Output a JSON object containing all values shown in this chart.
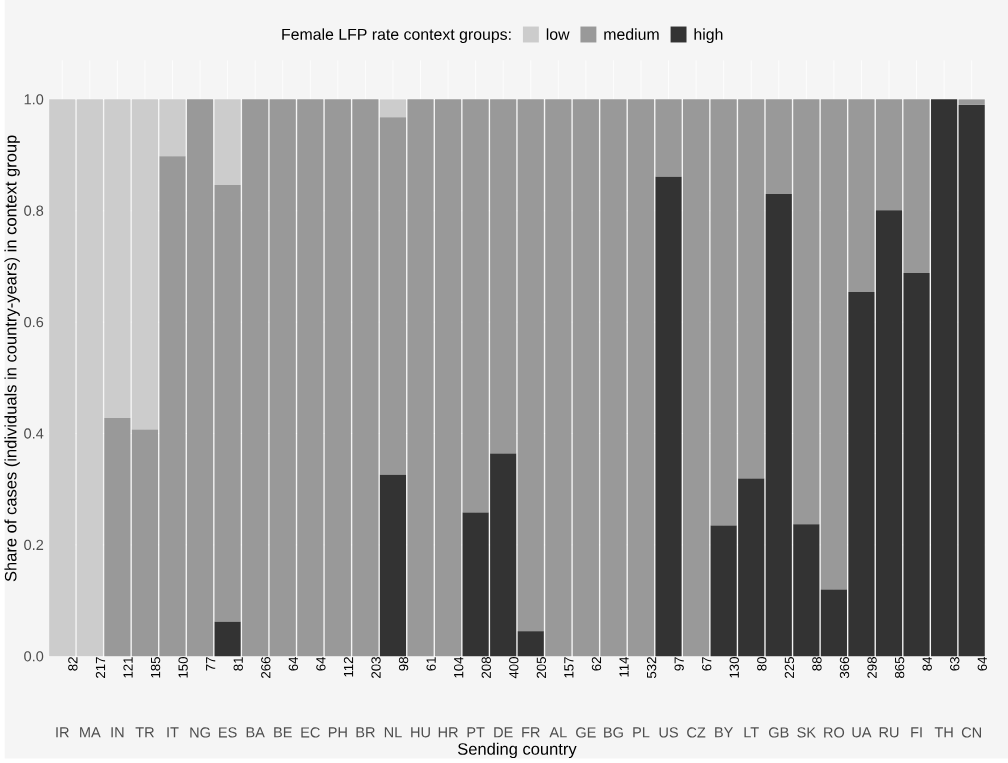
{
  "chart_data": {
    "type": "bar",
    "stacked": true,
    "xlabel": "Sending country",
    "ylabel": "Share of cases (individuals in country-years) in context group",
    "legend_title": "Female LFP rate context groups:",
    "legend": "top",
    "categories": [
      "IR",
      "MA",
      "IN",
      "TR",
      "IT",
      "NG",
      "ES",
      "BA",
      "BE",
      "EC",
      "PH",
      "BR",
      "NL",
      "HU",
      "HR",
      "PT",
      "DE",
      "FR",
      "AL",
      "GE",
      "BG",
      "PL",
      "US",
      "CZ",
      "BY",
      "LT",
      "GB",
      "SK",
      "RO",
      "UA",
      "RU",
      "FI",
      "TH",
      "CN"
    ],
    "series": [
      {
        "name": "high",
        "color": "#333333",
        "values": [
          0,
          0,
          0,
          0,
          0,
          0,
          0.062,
          0,
          0,
          0,
          0,
          0,
          0.326,
          0,
          0,
          0.258,
          0.364,
          0.045,
          0,
          0,
          0,
          0,
          0.861,
          0,
          0.235,
          0.319,
          0.83,
          0.237,
          0.12,
          0.654,
          0.801,
          0.688,
          1,
          0.99
        ]
      },
      {
        "name": "medium",
        "color": "#999999",
        "values": [
          0,
          0,
          0.428,
          0.407,
          0.898,
          1,
          0.784,
          1,
          1,
          1,
          1,
          1,
          0.642,
          1,
          1,
          0.742,
          0.636,
          0.955,
          1,
          1,
          1,
          1,
          0.139,
          1,
          0.765,
          0.681,
          0.17,
          0.763,
          0.88,
          0.346,
          0.199,
          0.312,
          0,
          0.01
        ]
      },
      {
        "name": "low",
        "color": "#cccccc",
        "values": [
          1,
          1,
          0.572,
          0.593,
          0.102,
          0,
          0.154,
          0,
          0,
          0,
          0,
          0,
          0.032,
          0,
          0,
          0,
          0,
          0,
          0,
          0,
          0,
          0,
          0,
          0,
          0,
          0,
          0,
          0,
          0,
          0,
          0,
          0,
          0,
          0
        ]
      }
    ],
    "ylim": [
      0,
      1.07
    ],
    "yticks": [
      {
        "value": 0,
        "label": "0.0"
      },
      0.2,
      0.4,
      0.6,
      0.8,
      {
        "value": 1,
        "label": "1.0"
      }
    ],
    "grid": true,
    "annotations": [
      "82",
      "217",
      "121",
      "185",
      "150",
      "77",
      "81",
      "266",
      "64",
      "64",
      "112",
      "203",
      "98",
      "61",
      "104",
      "208",
      "400",
      "205",
      "157",
      "62",
      "114",
      "532",
      "97",
      "67",
      "130",
      "80",
      "225",
      "88",
      "366",
      "298",
      "865",
      "84",
      "63",
      "64"
    ]
  }
}
